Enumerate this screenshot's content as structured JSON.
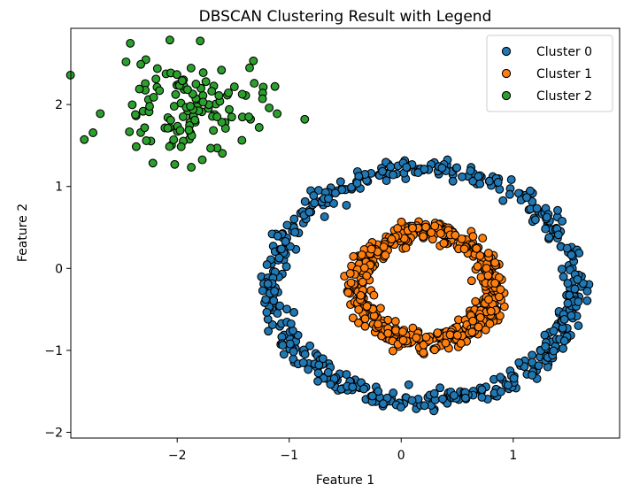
{
  "chart_data": {
    "type": "scatter",
    "title": "DBSCAN Clustering Result with Legend",
    "xlabel": "Feature 1",
    "ylabel": "Feature 2",
    "xlim": [
      -2.95,
      1.95
    ],
    "ylim": [
      -2.07,
      2.93
    ],
    "xticks": [
      {
        "value": -2,
        "label": "−2"
      },
      {
        "value": -1,
        "label": "−1"
      },
      {
        "value": 0,
        "label": "0"
      },
      {
        "value": 1,
        "label": "1"
      }
    ],
    "yticks": [
      {
        "value": -2,
        "label": "−2"
      },
      {
        "value": -1,
        "label": "−1"
      },
      {
        "value": 0,
        "label": "0"
      },
      {
        "value": 1,
        "label": "1"
      },
      {
        "value": 2,
        "label": "2"
      }
    ],
    "grid": false,
    "legend_position": "top-right",
    "marker_edge_color": "#000000",
    "series": [
      {
        "name": "Cluster 0",
        "color": "#1f77b4",
        "shape": "ring",
        "center": [
          0.2,
          -0.2
        ],
        "radius_x": 1.35,
        "radius_y": 1.42,
        "noise": 0.06,
        "count": 520
      },
      {
        "name": "Cluster 1",
        "color": "#ff7f0e",
        "shape": "ring",
        "center": [
          0.22,
          -0.22
        ],
        "radius_x": 0.6,
        "radius_y": 0.66,
        "noise": 0.06,
        "count": 520
      },
      {
        "name": "Cluster 2",
        "color": "#2ca02c",
        "shape": "blob",
        "center": [
          -1.9,
          1.95
        ],
        "spread_x": 0.35,
        "spread_y": 0.32,
        "count": 130
      }
    ]
  }
}
